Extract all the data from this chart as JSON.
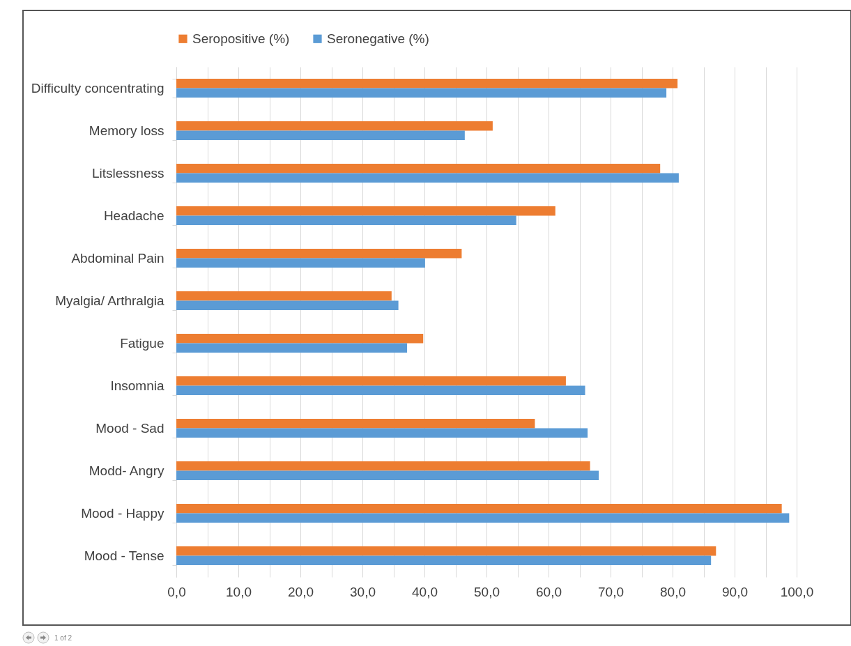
{
  "chart_data": {
    "type": "bar",
    "orientation": "horizontal",
    "categories": [
      "Difficulty concentrating",
      "Memory loss",
      "Litslessness",
      "Headache",
      "Abdominal Pain",
      "Myalgia/ Arthralgia",
      "Fatigue",
      "Insomnia",
      "Mood - Sad",
      "Modd- Angry",
      "Mood - Happy",
      "Mood - Tense"
    ],
    "series": [
      {
        "name": "Seropositive (%)",
        "color": "#ed7d31",
        "values": [
          80.8,
          51.0,
          78.0,
          61.1,
          46.0,
          34.7,
          39.8,
          62.8,
          57.8,
          66.7,
          97.6,
          87.0
        ]
      },
      {
        "name": "Seronegative (%)",
        "color": "#5b9bd5",
        "values": [
          79.0,
          46.5,
          81.0,
          54.8,
          40.1,
          35.8,
          37.2,
          65.9,
          66.3,
          68.1,
          98.8,
          86.2
        ]
      }
    ],
    "xlim": [
      0,
      100
    ],
    "xticks": [
      {
        "value": 0,
        "label": "0,0"
      },
      {
        "value": 5,
        "label": null
      },
      {
        "value": 10,
        "label": "10,0"
      },
      {
        "value": 15,
        "label": null
      },
      {
        "value": 20,
        "label": "20,0"
      },
      {
        "value": 25,
        "label": null
      },
      {
        "value": 30,
        "label": "30,0"
      },
      {
        "value": 35,
        "label": null
      },
      {
        "value": 40,
        "label": "40,0"
      },
      {
        "value": 45,
        "label": null
      },
      {
        "value": 50,
        "label": "50,0"
      },
      {
        "value": 55,
        "label": null
      },
      {
        "value": 60,
        "label": "60,0"
      },
      {
        "value": 65,
        "label": null
      },
      {
        "value": 70,
        "label": "70,0"
      },
      {
        "value": 75,
        "label": null
      },
      {
        "value": 80,
        "label": "80,0"
      },
      {
        "value": 85,
        "label": null
      },
      {
        "value": 90,
        "label": "90,0"
      },
      {
        "value": 95,
        "label": null
      },
      {
        "value": 100,
        "label": "100,0"
      }
    ],
    "grid": "x",
    "legend": "top",
    "annotations": [
      "1 of 2"
    ]
  }
}
